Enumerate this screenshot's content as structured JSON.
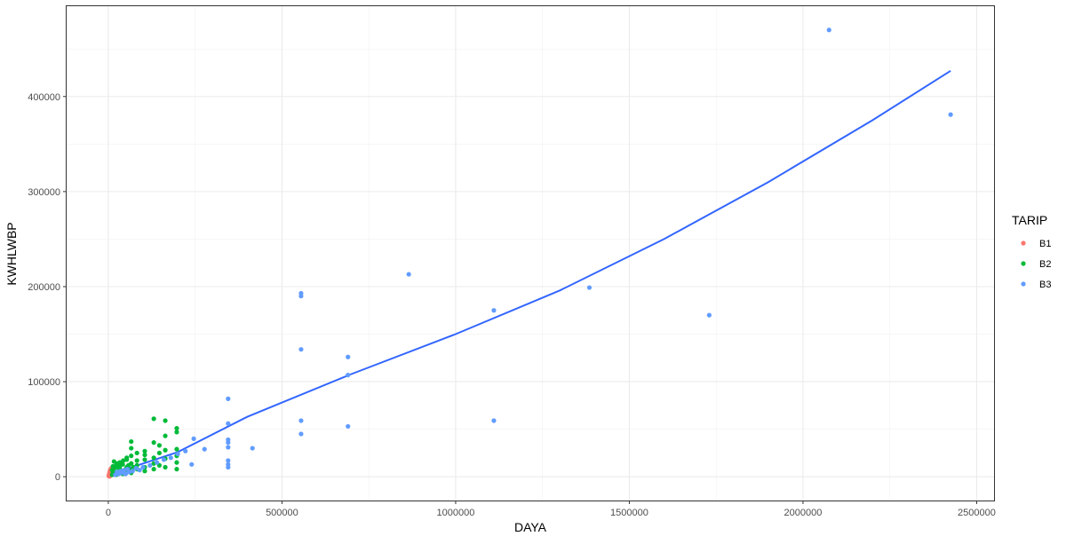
{
  "chart_data": {
    "type": "scatter",
    "xlabel": "DAYA",
    "ylabel": "KWHLWBP",
    "xlim": [
      -120000,
      2550000
    ],
    "ylim": [
      -25000,
      495000
    ],
    "x_ticks": [
      0,
      500000,
      1000000,
      1500000,
      2000000,
      2500000
    ],
    "x_tick_labels": [
      "0",
      "500000",
      "1000000",
      "1500000",
      "2000000",
      "2500000"
    ],
    "y_ticks": [
      0,
      100000,
      200000,
      300000,
      400000
    ],
    "y_tick_labels": [
      "0",
      "100000",
      "200000",
      "300000",
      "400000"
    ],
    "grid": true,
    "legend": {
      "title": "TARIP",
      "position": "right",
      "entries": [
        {
          "label": "B1",
          "color": "#f8766d"
        },
        {
          "label": "B2",
          "color": "#00ba38"
        },
        {
          "label": "B3",
          "color": "#619cff"
        }
      ]
    },
    "series": [
      {
        "name": "B1",
        "color": "#f8766d",
        "points": [
          [
            1300,
            1000
          ],
          [
            2200,
            2500
          ],
          [
            3500,
            4000
          ],
          [
            4400,
            6000
          ],
          [
            5500,
            3000
          ],
          [
            6600,
            8000
          ],
          [
            7700,
            2000
          ],
          [
            9000,
            5000
          ],
          [
            10600,
            7000
          ],
          [
            2200,
            500
          ],
          [
            3500,
            1500
          ],
          [
            4400,
            500
          ],
          [
            7700,
            4000
          ],
          [
            9000,
            9000
          ]
        ]
      },
      {
        "name": "B2",
        "color": "#00ba38",
        "points": [
          [
            11000,
            2000
          ],
          [
            11000,
            7000
          ],
          [
            13200,
            4000
          ],
          [
            13200,
            11000
          ],
          [
            16500,
            3000
          ],
          [
            16500,
            9000
          ],
          [
            16500,
            16000
          ],
          [
            23000,
            5000
          ],
          [
            23000,
            12000
          ],
          [
            23000,
            2000
          ],
          [
            33000,
            4000
          ],
          [
            33000,
            8000
          ],
          [
            33000,
            15000
          ],
          [
            33000,
            11000
          ],
          [
            41500,
            6000
          ],
          [
            41500,
            13000
          ],
          [
            41500,
            3000
          ],
          [
            53000,
            5000
          ],
          [
            53000,
            10000
          ],
          [
            53000,
            18000
          ],
          [
            53000,
            20000
          ],
          [
            66000,
            7000
          ],
          [
            66000,
            14000
          ],
          [
            66000,
            22000
          ],
          [
            66000,
            30000
          ],
          [
            66000,
            37000
          ],
          [
            66000,
            4000
          ],
          [
            82500,
            8000
          ],
          [
            82500,
            17000
          ],
          [
            82500,
            25000
          ],
          [
            82500,
            12000
          ],
          [
            105000,
            10000
          ],
          [
            105000,
            18000
          ],
          [
            105000,
            23000
          ],
          [
            105000,
            27000
          ],
          [
            105000,
            6000
          ],
          [
            131000,
            8000
          ],
          [
            131000,
            14000
          ],
          [
            131000,
            20000
          ],
          [
            131000,
            36000
          ],
          [
            131000,
            61000
          ],
          [
            147000,
            12000
          ],
          [
            147000,
            25000
          ],
          [
            147000,
            33000
          ],
          [
            164000,
            10000
          ],
          [
            164000,
            19000
          ],
          [
            164000,
            28000
          ],
          [
            164000,
            43000
          ],
          [
            164000,
            59000
          ],
          [
            197000,
            8000
          ],
          [
            197000,
            15000
          ],
          [
            197000,
            22000
          ],
          [
            197000,
            29000
          ],
          [
            197000,
            47000
          ],
          [
            197000,
            51000
          ],
          [
            27000,
            10000
          ],
          [
            27000,
            14000
          ],
          [
            43000,
            17000
          ],
          [
            58000,
            12000
          ],
          [
            72000,
            10000
          ]
        ]
      },
      {
        "name": "B3",
        "color": "#619cff",
        "points": [
          [
            20000,
            2000
          ],
          [
            25000,
            5000
          ],
          [
            30000,
            3000
          ],
          [
            35000,
            6000
          ],
          [
            40000,
            4000
          ],
          [
            45000,
            7000
          ],
          [
            50000,
            3000
          ],
          [
            55000,
            8000
          ],
          [
            60000,
            5000
          ],
          [
            70000,
            6000
          ],
          [
            80000,
            9000
          ],
          [
            90000,
            7000
          ],
          [
            100000,
            10000
          ],
          [
            120000,
            12000
          ],
          [
            140000,
            15000
          ],
          [
            160000,
            18000
          ],
          [
            180000,
            20000
          ],
          [
            200000,
            24000
          ],
          [
            222000,
            27000
          ],
          [
            240000,
            13000
          ],
          [
            246000,
            40000
          ],
          [
            277000,
            29000
          ],
          [
            345000,
            10000
          ],
          [
            345000,
            13000
          ],
          [
            345000,
            17000
          ],
          [
            345000,
            31000
          ],
          [
            345000,
            36000
          ],
          [
            345000,
            39000
          ],
          [
            345000,
            56000
          ],
          [
            345000,
            82000
          ],
          [
            415000,
            30000
          ],
          [
            555000,
            45000
          ],
          [
            555000,
            59000
          ],
          [
            555000,
            134000
          ],
          [
            555000,
            190000
          ],
          [
            555000,
            193000
          ],
          [
            690000,
            53000
          ],
          [
            690000,
            107000
          ],
          [
            690000,
            126000
          ],
          [
            865000,
            213000
          ],
          [
            1110000,
            59000
          ],
          [
            1110000,
            175000
          ],
          [
            1385000,
            199000
          ],
          [
            1730000,
            170000
          ],
          [
            2075000,
            470000
          ],
          [
            2425000,
            381000
          ]
        ]
      }
    ],
    "trend_line": {
      "color": "#3366ff",
      "points": [
        [
          10000,
          3000
        ],
        [
          200000,
          26000
        ],
        [
          400000,
          63000
        ],
        [
          700000,
          108000
        ],
        [
          1000000,
          150000
        ],
        [
          1300000,
          196000
        ],
        [
          1600000,
          250000
        ],
        [
          1900000,
          310000
        ],
        [
          2200000,
          375000
        ],
        [
          2425000,
          427000
        ]
      ]
    }
  }
}
